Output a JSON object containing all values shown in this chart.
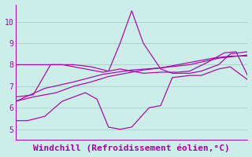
{
  "title": "Windchill (Refroidissement éolien,°C)",
  "bg_color": "#cceee8",
  "grid_color": "#aad4ce",
  "line_color": "#aa00aa",
  "ylim": [
    4.5,
    10.8
  ],
  "yticks": [
    5,
    6,
    7,
    8,
    9,
    10
  ],
  "xlim": [
    0,
    40
  ],
  "lines": [
    {
      "x": [
        0,
        2,
        5,
        8,
        10,
        12,
        14,
        16,
        18,
        20,
        23,
        25,
        27,
        30,
        32,
        35,
        37,
        40
      ],
      "y": [
        5.4,
        5.4,
        5.6,
        6.3,
        6.5,
        6.7,
        6.4,
        5.1,
        5.0,
        5.1,
        6.0,
        6.1,
        7.4,
        7.5,
        7.5,
        7.8,
        7.9,
        7.3
      ]
    },
    {
      "x": [
        0,
        3,
        6,
        10,
        13,
        16,
        18,
        20,
        22,
        25,
        27,
        30,
        32,
        35,
        37,
        40
      ],
      "y": [
        6.5,
        6.6,
        8.0,
        8.0,
        7.9,
        7.7,
        9.0,
        10.5,
        9.0,
        7.8,
        7.6,
        7.6,
        7.7,
        8.0,
        8.5,
        8.6
      ]
    },
    {
      "x": [
        0,
        5,
        10,
        15,
        20,
        25,
        30,
        35,
        40
      ],
      "y": [
        6.3,
        6.9,
        7.2,
        7.55,
        7.75,
        7.85,
        8.0,
        8.3,
        8.45
      ]
    },
    {
      "x": [
        0,
        2,
        5,
        8,
        12,
        15,
        18,
        22,
        25,
        28,
        30,
        33,
        36,
        38,
        40
      ],
      "y": [
        8.0,
        8.0,
        8.0,
        8.0,
        7.8,
        7.65,
        7.8,
        7.6,
        7.65,
        7.65,
        7.7,
        8.1,
        8.55,
        8.6,
        7.5
      ]
    },
    {
      "x": [
        0,
        3,
        7,
        10,
        13,
        16,
        19,
        22,
        25,
        28,
        31,
        34,
        37,
        40
      ],
      "y": [
        6.3,
        6.5,
        6.7,
        7.0,
        7.2,
        7.45,
        7.6,
        7.75,
        7.85,
        8.0,
        8.15,
        8.3,
        8.4,
        8.4
      ]
    }
  ],
  "title_fontsize": 8,
  "tick_fontsize": 7
}
